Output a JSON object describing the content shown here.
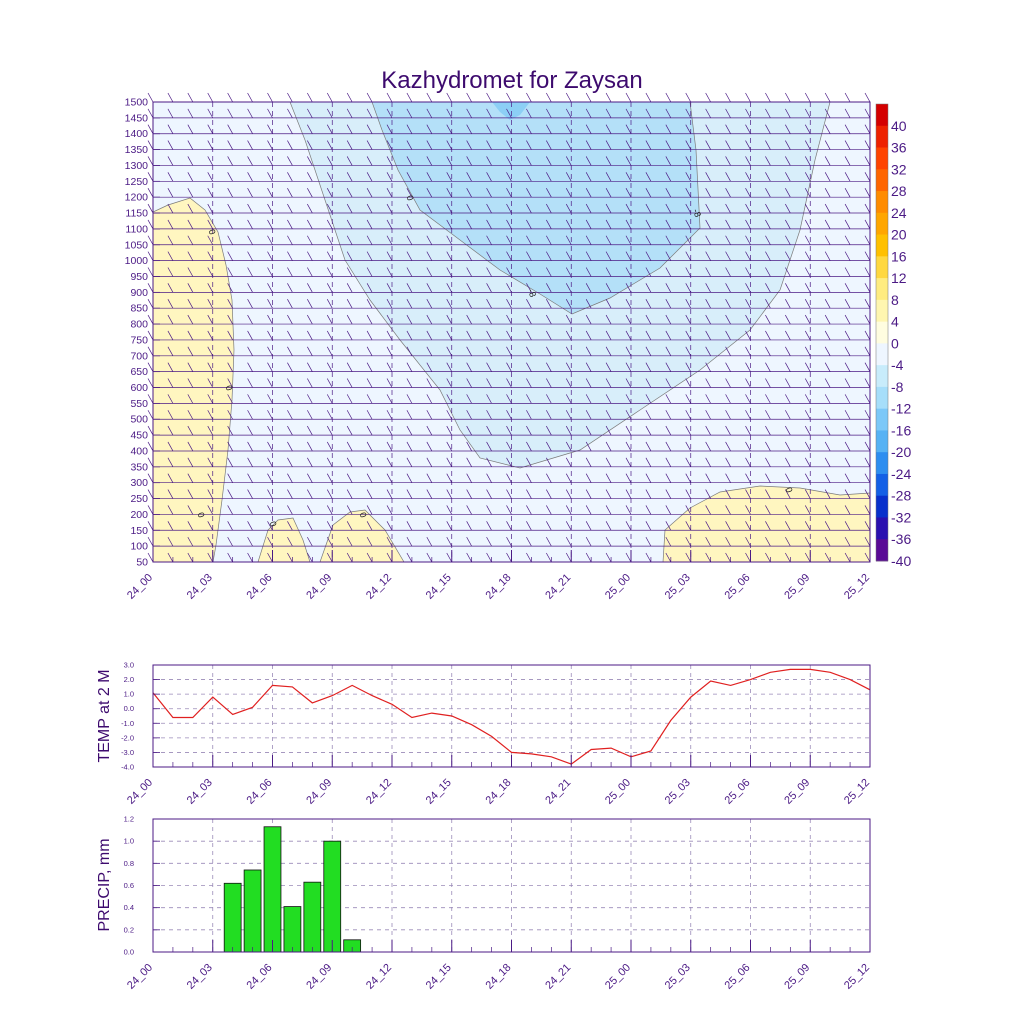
{
  "chart_data": [
    {
      "type": "heatmap",
      "title": "Kazhydromet for Zaysan",
      "xlabel": "",
      "ylabel": "",
      "x_tick_labels": [
        "24_00",
        "24_03",
        "24_06",
        "24_09",
        "24_12",
        "24_15",
        "24_18",
        "24_21",
        "25_00",
        "25_03",
        "25_06",
        "25_09",
        "25_12"
      ],
      "y_tick_labels": [
        "1500",
        "1450",
        "1400",
        "1350",
        "1300",
        "1250",
        "1200",
        "1150",
        "1100",
        "1050",
        "1000",
        "950",
        "900",
        "850",
        "800",
        "750",
        "700",
        "650",
        "600",
        "550",
        "500",
        "450",
        "400",
        "350",
        "300",
        "250",
        "200",
        "150",
        "100",
        "50"
      ],
      "ylim": [
        50,
        1500
      ],
      "colorbar_labels": [
        "40",
        "36",
        "32",
        "28",
        "24",
        "20",
        "16",
        "12",
        "8",
        "4",
        "0",
        "-4",
        "-8",
        "-12",
        "-16",
        "-20",
        "-24",
        "-28",
        "-32",
        "-36",
        "-40"
      ],
      "colorbar_colors": [
        "#d40000",
        "#ee2200",
        "#ff4400",
        "#ff6600",
        "#ff8c00",
        "#ffa600",
        "#ffc000",
        "#ffd840",
        "#ffec80",
        "#fff6b0",
        "#fffde0",
        "#eef6ff",
        "#c8ecfb",
        "#a6defa",
        "#7cc8f8",
        "#56b2f4",
        "#2e8ef0",
        "#1460e6",
        "#0830cc",
        "#2a10b0",
        "#5a0a96"
      ],
      "contour_labels": [
        "0",
        "0",
        "0",
        "0",
        "0",
        "0",
        "0",
        "-8",
        "-8",
        "-8"
      ],
      "region_colors": {
        "above_zero": "#fff6c0",
        "zero_to_minus4": "#eef6ff",
        "minus4_to_minus8": "#d8eefa",
        "minus8_to_minus12": "#b4e0f8",
        "minus12_to_minus16": "#8ccff5"
      },
      "wind_barbs": "wind barbs at every level and time step"
    },
    {
      "type": "line",
      "ylabel": "TEMP at 2 M",
      "ylim": [
        -4.0,
        3.0
      ],
      "y_tick_labels": [
        "3.0",
        "2.0",
        "1.0",
        "0.0",
        "-1.0",
        "-2.0",
        "-3.0",
        "-4.0"
      ],
      "x_tick_labels": [
        "24_00",
        "24_03",
        "24_06",
        "24_09",
        "24_12",
        "24_15",
        "24_18",
        "24_21",
        "25_00",
        "25_03",
        "25_06",
        "25_09",
        "25_12"
      ],
      "x": [
        0,
        1,
        2,
        3,
        4,
        5,
        6,
        7,
        8,
        9,
        10,
        11,
        12,
        13,
        14,
        15,
        16,
        17,
        18,
        19,
        20,
        21,
        22,
        23,
        24,
        25,
        26,
        27,
        28,
        29,
        30,
        31,
        32,
        33,
        34,
        35,
        36
      ],
      "values": [
        1.1,
        -0.6,
        -0.6,
        0.8,
        -0.4,
        0.1,
        1.6,
        1.5,
        0.4,
        0.9,
        1.6,
        0.9,
        0.3,
        -0.6,
        -0.3,
        -0.5,
        -1.1,
        -1.9,
        -3.0,
        -3.1,
        -3.3,
        -3.8,
        -2.8,
        -2.7,
        -3.3,
        -2.9,
        -0.8,
        0.8,
        1.9,
        1.6,
        2.0,
        2.5,
        2.7,
        2.7,
        2.5,
        2.0,
        1.3
      ],
      "line_color": "#e02020"
    },
    {
      "type": "bar",
      "ylabel": "PRECIP, mm",
      "ylim": [
        0.0,
        1.2
      ],
      "y_tick_labels": [
        "1.2",
        "1.0",
        "0.8",
        "0.6",
        "0.4",
        "0.2",
        "0.0"
      ],
      "x_tick_labels": [
        "24_00",
        "24_03",
        "24_06",
        "24_09",
        "24_12",
        "24_15",
        "24_18",
        "24_21",
        "25_00",
        "25_03",
        "25_06",
        "25_09",
        "25_12"
      ],
      "x": [
        4,
        5,
        6,
        7,
        8,
        9,
        10
      ],
      "values": [
        0.62,
        0.74,
        1.13,
        0.41,
        0.63,
        1.0,
        0.11
      ],
      "bar_color": "#22dd22"
    }
  ]
}
